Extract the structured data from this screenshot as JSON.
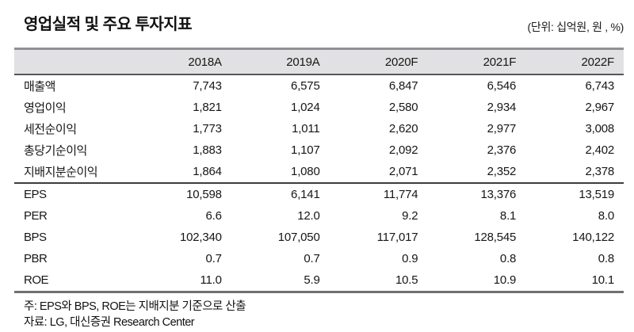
{
  "title": "영업실적 및 주요 투자지표",
  "unit_label": "(단위: 십억원, 원 , %)",
  "table": {
    "columns": [
      "",
      "2018A",
      "2019A",
      "2020F",
      "2021F",
      "2022F"
    ],
    "sections": [
      {
        "name": "earnings",
        "rows": [
          {
            "label": "매출액",
            "values": [
              "7,743",
              "6,575",
              "6,847",
              "6,546",
              "6,743"
            ]
          },
          {
            "label": "영업이익",
            "values": [
              "1,821",
              "1,024",
              "2,580",
              "2,934",
              "2,967"
            ]
          },
          {
            "label": "세전순이익",
            "values": [
              "1,773",
              "1,011",
              "2,620",
              "2,977",
              "3,008"
            ]
          },
          {
            "label": "총당기순이익",
            "values": [
              "1,883",
              "1,107",
              "2,092",
              "2,376",
              "2,402"
            ]
          },
          {
            "label": "지배지분순이익",
            "values": [
              "1,864",
              "1,080",
              "2,071",
              "2,352",
              "2,378"
            ]
          }
        ]
      },
      {
        "name": "valuation",
        "rows": [
          {
            "label": "EPS",
            "values": [
              "10,598",
              "6,141",
              "11,774",
              "13,376",
              "13,519"
            ]
          },
          {
            "label": "PER",
            "values": [
              "6.6",
              "12.0",
              "9.2",
              "8.1",
              "8.0"
            ]
          },
          {
            "label": "BPS",
            "values": [
              "102,340",
              "107,050",
              "117,017",
              "128,545",
              "140,122"
            ]
          },
          {
            "label": "PBR",
            "values": [
              "0.7",
              "0.7",
              "0.9",
              "0.8",
              "0.8"
            ]
          },
          {
            "label": "ROE",
            "values": [
              "11.0",
              "5.9",
              "10.5",
              "10.9",
              "10.1"
            ]
          }
        ]
      }
    ]
  },
  "notes": [
    "주: EPS와 BPS, ROE는 지배지분 기준으로 산출",
    "자료: LG, 대신증권 Research Center"
  ],
  "colors": {
    "header_bg": "#e1e1e3",
    "border_top": "#8e9193",
    "border_header_bottom": "#54565a",
    "border_section_divider": "#3c3c3e",
    "border_table_bottom": "#6f7073",
    "text": "#161616"
  }
}
